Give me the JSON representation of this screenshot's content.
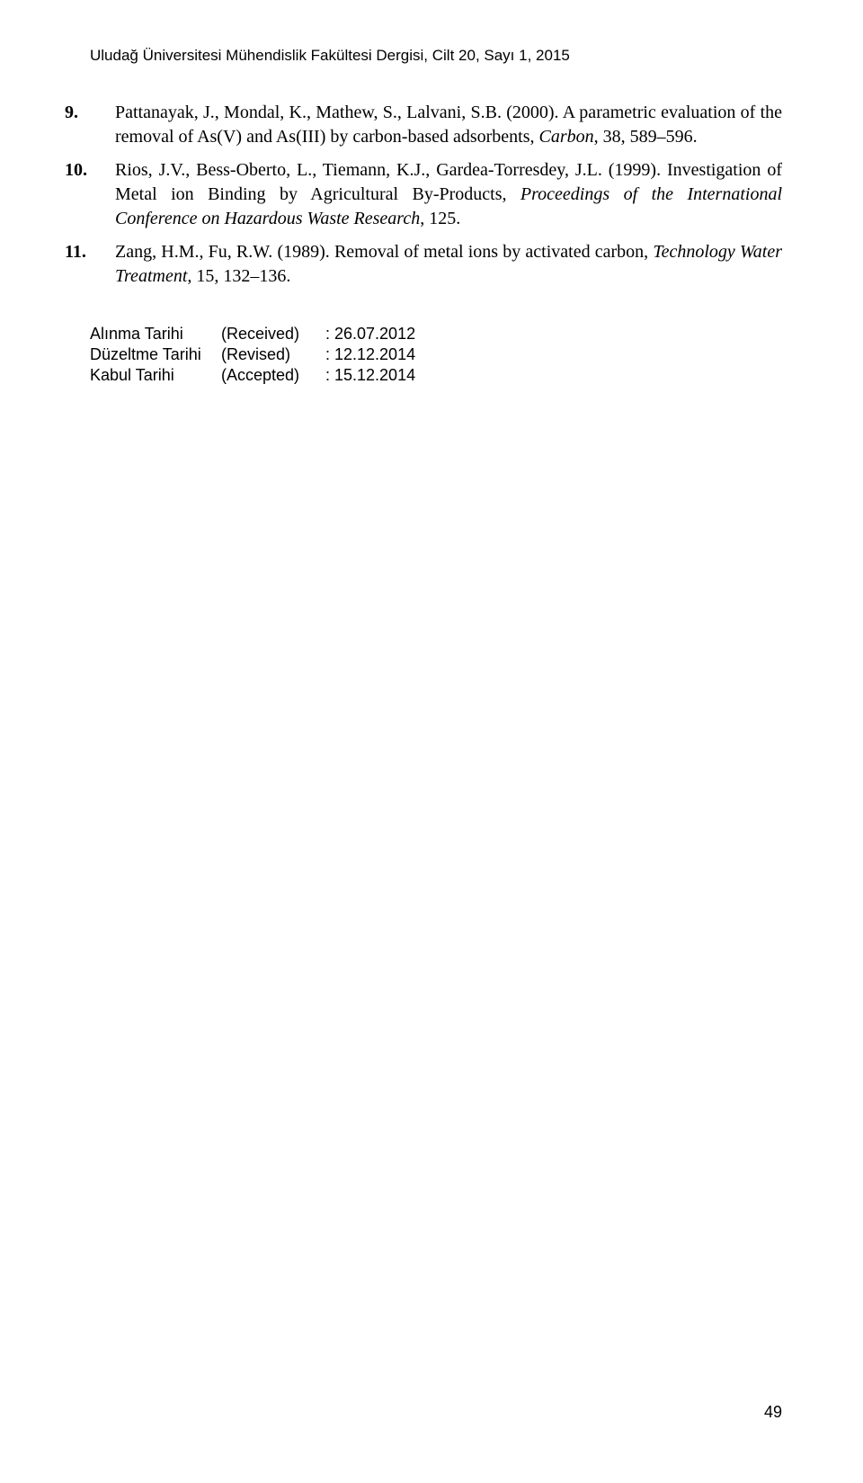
{
  "header": {
    "running_title": "Uludağ Üniversitesi Mühendislik Fakültesi Dergisi, Cilt 20, Sayı 1, 2015"
  },
  "references": [
    {
      "number": "9.",
      "authors": "Pattanayak, J., Mondal, K., Mathew, S., Lalvani, S.B. (2000).",
      "text_plain": " A parametric evaluation of the removal of As(V) and As(III) by carbon-based adsorbents, ",
      "journal_italic": "Carbon",
      "text_after": ", 38, 589–596."
    },
    {
      "number": "10.",
      "authors": "Rios, J.V., Bess-Oberto, L., Tiemann, K.J., Gardea-Torresdey, J.L. (1999).",
      "text_plain": " Investigation of Metal ion Binding by Agricultural By-Products, ",
      "journal_italic": "Proceedings of the International Conference on Hazardous Waste Research",
      "text_after": ", 125."
    },
    {
      "number": "11.",
      "authors": "Zang, H.M., Fu, R.W. (1989).",
      "text_plain": " Removal of metal ions by activated carbon, ",
      "journal_italic": "Technology Water Treatment",
      "text_after": ", 15, 132–136."
    }
  ],
  "dates": {
    "received_label": "Alınma Tarihi",
    "revised_label": "Düzeltme Tarihi",
    "accepted_label": "Kabul Tarihi",
    "received_type": "(Received)",
    "revised_type": "(Revised)",
    "accepted_type": "(Accepted)",
    "received_value": ": 26.07.2012",
    "revised_value": ": 12.12.2014",
    "accepted_value": ": 15.12.2014"
  },
  "page_number": "49"
}
